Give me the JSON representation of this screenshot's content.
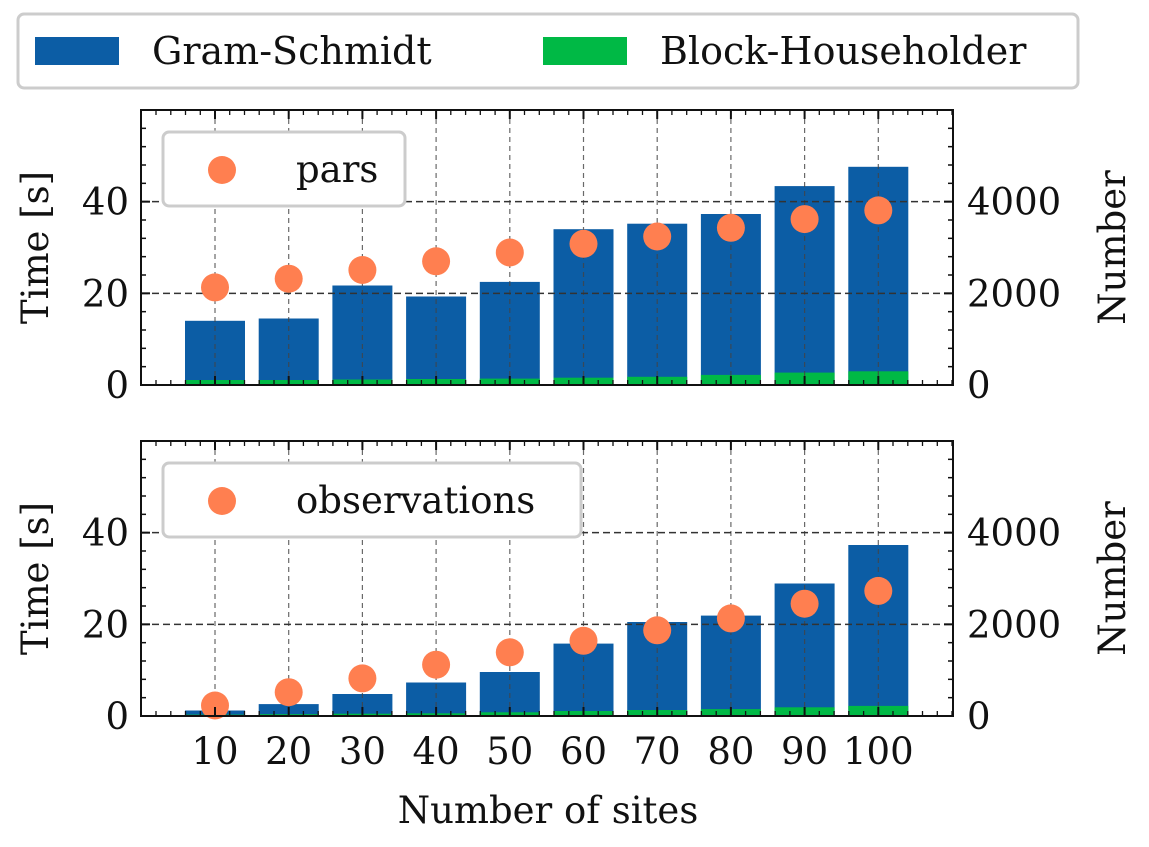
{
  "figure": {
    "legend_top": {
      "placement": "top-center",
      "entries": [
        {
          "label": "Gram-Schmidt",
          "color": "#0c5da5"
        },
        {
          "label": "Block-Householder",
          "color": "#00b945"
        }
      ]
    },
    "xlabel": "Number of sites"
  },
  "chart_data": [
    {
      "type": "bar",
      "panel": "top",
      "categories": [
        "10",
        "20",
        "30",
        "40",
        "50",
        "60",
        "70",
        "80",
        "90",
        "100"
      ],
      "series": [
        {
          "name": "Gram-Schmidt",
          "color": "#0c5da5",
          "axis": "left",
          "values": [
            14.0,
            14.5,
            21.7,
            19.3,
            22.5,
            34.0,
            35.2,
            37.3,
            43.4,
            47.6
          ]
        },
        {
          "name": "Block-Householder",
          "color": "#00b945",
          "axis": "left",
          "values": [
            1.1,
            1.1,
            1.2,
            1.3,
            1.4,
            1.6,
            1.8,
            2.2,
            2.7,
            3.0
          ]
        },
        {
          "name": "pars",
          "type": "scatter",
          "color": "#ff7f50",
          "axis": "right",
          "values": [
            2130,
            2320,
            2510,
            2700,
            2890,
            3080,
            3240,
            3430,
            3620,
            3810
          ]
        }
      ],
      "ylabel_left": "Time [s]",
      "ylabel_right": "Number",
      "ylim_left": [
        0,
        60
      ],
      "ylim_right": [
        0,
        6000
      ],
      "yticks_left": [
        "0",
        "20",
        "40"
      ],
      "yticks_right": [
        "0",
        "2000",
        "4000"
      ],
      "grid": true,
      "legend": {
        "placement": "top-left",
        "entries": [
          "pars"
        ]
      }
    },
    {
      "type": "bar",
      "panel": "bottom",
      "categories": [
        "10",
        "20",
        "30",
        "40",
        "50",
        "60",
        "70",
        "80",
        "90",
        "100"
      ],
      "series": [
        {
          "name": "Gram-Schmidt",
          "color": "#0c5da5",
          "axis": "left",
          "values": [
            1.2,
            2.6,
            4.8,
            7.3,
            9.6,
            15.8,
            20.5,
            21.9,
            28.9,
            37.3
          ]
        },
        {
          "name": "Block-Householder",
          "color": "#00b945",
          "axis": "left",
          "values": [
            0.3,
            0.4,
            0.5,
            0.6,
            0.8,
            1.1,
            1.3,
            1.5,
            1.9,
            2.2
          ]
        },
        {
          "name": "observations",
          "type": "scatter",
          "color": "#ff7f50",
          "axis": "right",
          "values": [
            230,
            520,
            820,
            1120,
            1390,
            1640,
            1870,
            2130,
            2450,
            2730
          ]
        }
      ],
      "ylabel_left": "Time [s]",
      "ylabel_right": "Number",
      "ylim_left": [
        0,
        60
      ],
      "ylim_right": [
        0,
        6000
      ],
      "yticks_left": [
        "0",
        "20",
        "40"
      ],
      "yticks_right": [
        "0",
        "2000",
        "4000"
      ],
      "grid": true,
      "legend": {
        "placement": "top-left",
        "entries": [
          "observations"
        ]
      }
    }
  ]
}
